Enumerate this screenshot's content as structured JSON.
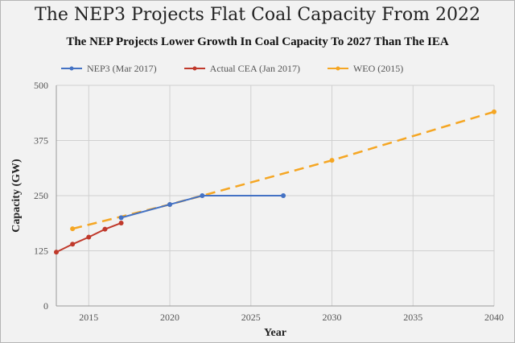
{
  "chart_data": {
    "type": "line",
    "title": "The NEP3 Projects Flat Coal Capacity From 2022",
    "subtitle": "The NEP Projects Lower Growth In Coal Capacity To 2027 Than The IEA",
    "xlabel": "Year",
    "ylabel": "Capacity (GW)",
    "xlim": [
      2013,
      2040
    ],
    "ylim": [
      0,
      500
    ],
    "x_ticks": [
      2015,
      2020,
      2025,
      2030,
      2035,
      2040
    ],
    "y_ticks": [
      0,
      125,
      250,
      375,
      500
    ],
    "grid": true,
    "legend_position": "top",
    "series": [
      {
        "name": "NEP3 (Mar 2017)",
        "color": "#4472c4",
        "dash": false,
        "points": [
          [
            2017,
            200
          ],
          [
            2020,
            230
          ],
          [
            2022,
            250
          ],
          [
            2027,
            250
          ]
        ]
      },
      {
        "name": "Actual CEA (Jan 2017)",
        "color": "#c0392b",
        "dash": false,
        "points": [
          [
            2013,
            122
          ],
          [
            2014,
            140
          ],
          [
            2015,
            156
          ],
          [
            2016,
            174
          ],
          [
            2017,
            188
          ]
        ]
      },
      {
        "name": "WEO (2015)",
        "color": "#f5a623",
        "dash": true,
        "points": [
          [
            2014,
            175
          ],
          [
            2020,
            230
          ],
          [
            2030,
            330
          ],
          [
            2040,
            440
          ]
        ]
      }
    ]
  }
}
